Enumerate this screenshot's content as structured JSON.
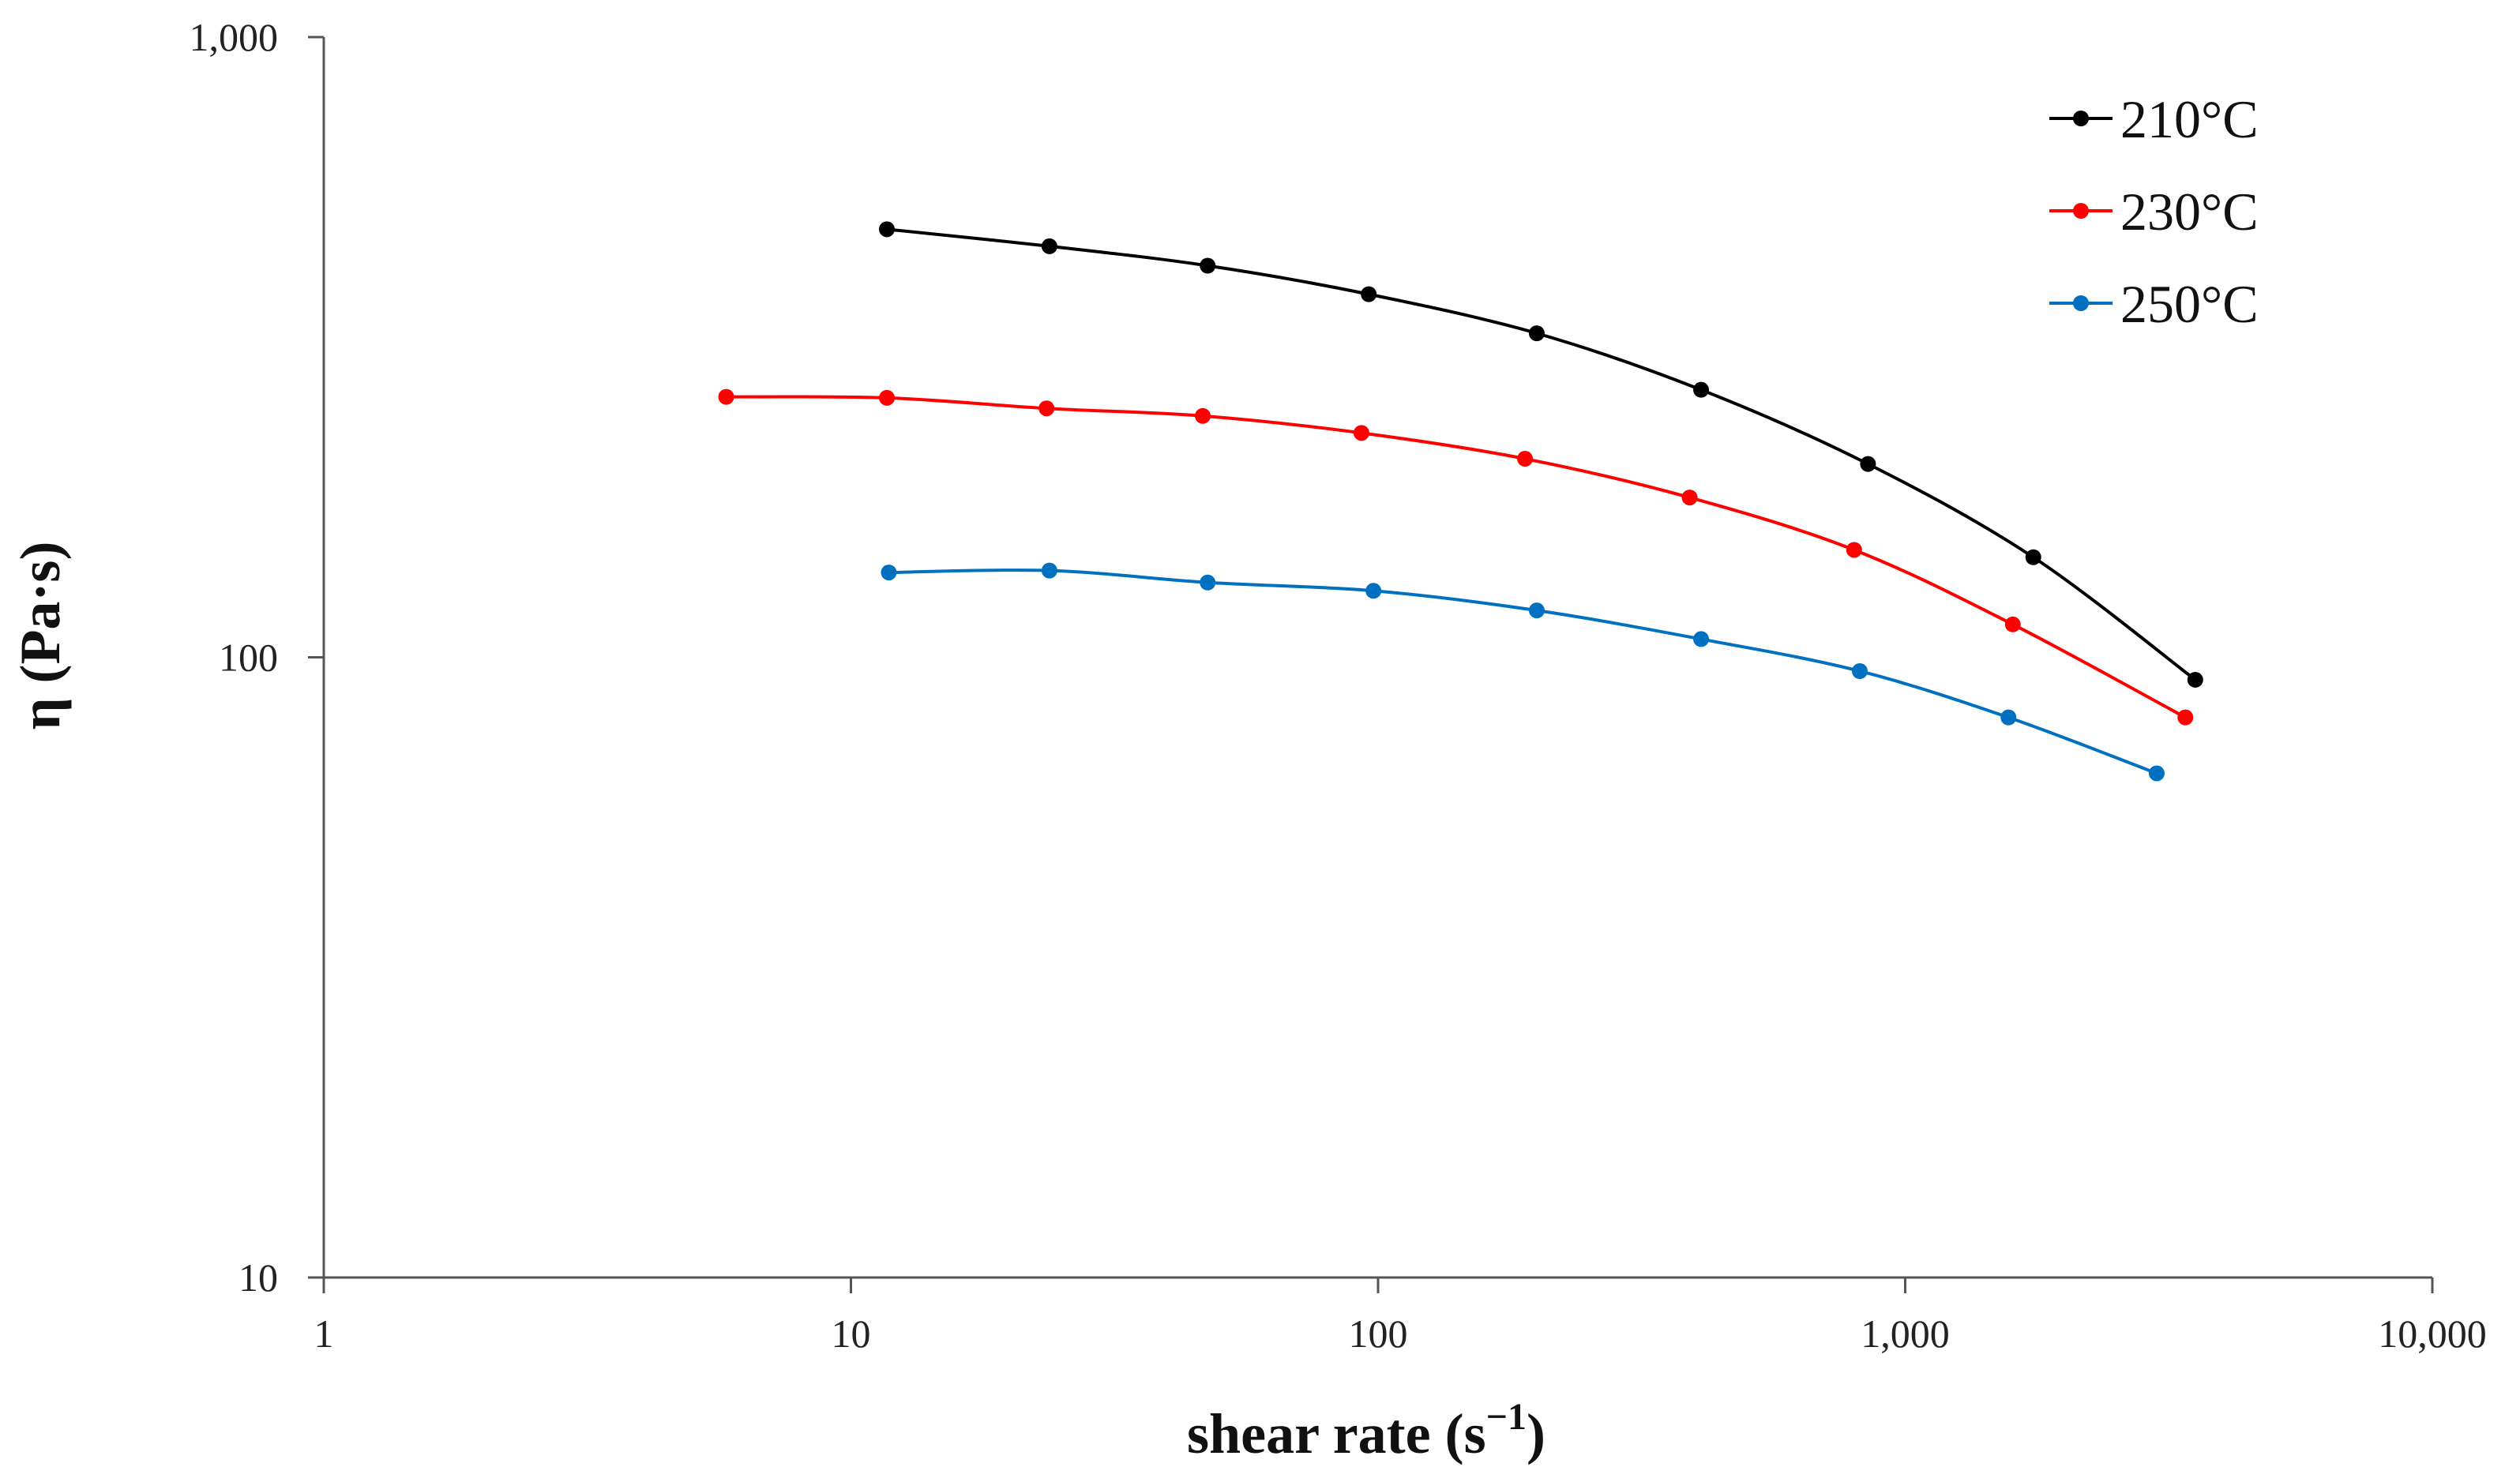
{
  "chart_data": {
    "type": "line",
    "xscale": "log",
    "yscale": "log",
    "xlim": [
      1,
      10000
    ],
    "ylim": [
      10,
      1000
    ],
    "x_ticks": [
      1,
      10,
      100,
      1000,
      10000
    ],
    "x_tick_labels": [
      "1",
      "10",
      "100",
      "1,000",
      "10,000"
    ],
    "y_ticks": [
      10,
      100,
      1000
    ],
    "y_tick_labels": [
      "10",
      "100",
      "1,000"
    ],
    "xlabel": "shear rate (s",
    "xlabel_superscript": "−1",
    "xlabel_suffix": ")",
    "ylabel": "η (Pa·s)",
    "grid": false,
    "legend_position": "top-right",
    "series": [
      {
        "name": "210°C",
        "color": "#000000",
        "x": [
          11.7,
          23.8,
          47.5,
          96,
          200,
          410,
          850,
          1750,
          3550
        ],
        "y": [
          490,
          460,
          428,
          385,
          333,
          270,
          205,
          145,
          92
        ]
      },
      {
        "name": "230°C",
        "color": "#ff0000",
        "x": [
          5.8,
          11.7,
          23.5,
          46.5,
          93,
          190,
          390,
          800,
          1600,
          3400
        ],
        "y": [
          263,
          262,
          252,
          245,
          230,
          209,
          181,
          149,
          113,
          80
        ]
      },
      {
        "name": "250°C",
        "color": "#0070c0",
        "x": [
          11.8,
          23.8,
          47.5,
          98,
          200,
          410,
          820,
          1570,
          3000
        ],
        "y": [
          137,
          138,
          132,
          128,
          119,
          107,
          95,
          80,
          65
        ]
      }
    ]
  }
}
